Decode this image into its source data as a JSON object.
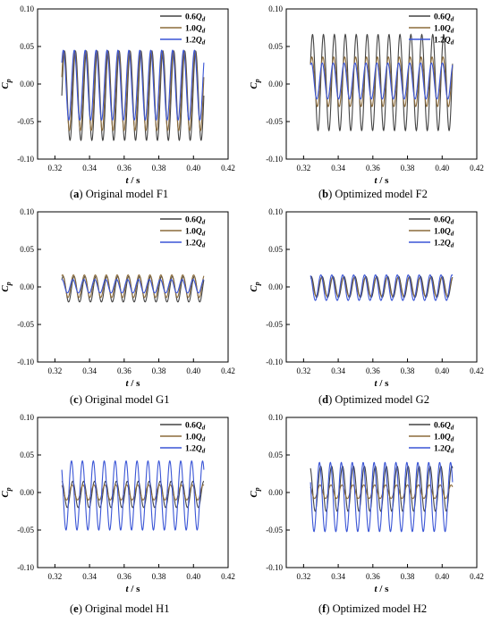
{
  "legend_labels": [
    "0.6Q",
    "1.0Q",
    "1.2Q"
  ],
  "legend_subscript": "d",
  "colors": {
    "s06": "#444444",
    "s10": "#8B6B3A",
    "s12": "#3A55D6"
  },
  "chart_data": [
    {
      "type": "line",
      "caption_letter": "a",
      "caption_text": " Original model F1",
      "xlabel": "t / s",
      "ylabel": "C_p",
      "xlim": [
        0.31,
        0.42
      ],
      "ylim": [
        -0.1,
        0.1
      ],
      "xticks": [
        "0.32",
        "0.34",
        "0.36",
        "0.38",
        "0.40",
        "0.42"
      ],
      "yticks": [
        "-0.10",
        "-0.05",
        "0.00",
        "0.05",
        "0.10"
      ],
      "x_range": [
        0.324,
        0.406
      ],
      "cycles": 13,
      "legend_position": "top-right",
      "series": [
        {
          "label_index": 0,
          "min": -0.075,
          "max": 0.044
        },
        {
          "label_index": 1,
          "min": -0.062,
          "max": 0.044
        },
        {
          "label_index": 2,
          "min": -0.048,
          "max": 0.045
        }
      ]
    },
    {
      "type": "line",
      "caption_letter": "b",
      "caption_text": " Optimized model F2",
      "xlabel": "t / s",
      "ylabel": "C_p",
      "xlim": [
        0.31,
        0.42
      ],
      "ylim": [
        -0.1,
        0.1
      ],
      "xticks": [
        "0.32",
        "0.34",
        "0.36",
        "0.38",
        "0.40",
        "0.42"
      ],
      "yticks": [
        "-0.10",
        "-0.05",
        "0.00",
        "0.05",
        "0.10"
      ],
      "x_range": [
        0.324,
        0.406
      ],
      "cycles": 13,
      "legend_position": "top-right",
      "series": [
        {
          "label_index": 0,
          "min": -0.062,
          "max": 0.066
        },
        {
          "label_index": 1,
          "min": -0.03,
          "max": 0.036
        },
        {
          "label_index": 2,
          "min": -0.02,
          "max": 0.028
        }
      ]
    },
    {
      "type": "line",
      "caption_letter": "c",
      "caption_text": " Original model G1",
      "xlabel": "t / s",
      "ylabel": "C_p",
      "xlim": [
        0.31,
        0.42
      ],
      "ylim": [
        -0.1,
        0.1
      ],
      "xticks": [
        "0.32",
        "0.34",
        "0.36",
        "0.38",
        "0.40",
        "0.42"
      ],
      "yticks": [
        "-0.10",
        "-0.05",
        "0.00",
        "0.05",
        "0.10"
      ],
      "x_range": [
        0.324,
        0.406
      ],
      "cycles": 13,
      "legend_position": "top-right",
      "series": [
        {
          "label_index": 0,
          "min": -0.02,
          "max": 0.014
        },
        {
          "label_index": 1,
          "min": -0.014,
          "max": 0.016
        },
        {
          "label_index": 2,
          "min": -0.008,
          "max": 0.01
        }
      ]
    },
    {
      "type": "line",
      "caption_letter": "d",
      "caption_text": " Optimized model G2",
      "xlabel": "t / s",
      "ylabel": "C_p",
      "xlim": [
        0.31,
        0.42
      ],
      "ylim": [
        -0.1,
        0.1
      ],
      "xticks": [
        "0.32",
        "0.34",
        "0.36",
        "0.38",
        "0.40",
        "0.42"
      ],
      "yticks": [
        "-0.10",
        "-0.05",
        "0.00",
        "0.05",
        "0.10"
      ],
      "x_range": [
        0.324,
        0.406
      ],
      "cycles": 13,
      "legend_position": "top-right",
      "series": [
        {
          "label_index": 0,
          "min": -0.014,
          "max": 0.014
        },
        {
          "label_index": 1,
          "min": -0.012,
          "max": 0.012
        },
        {
          "label_index": 2,
          "min": -0.018,
          "max": 0.016
        }
      ]
    },
    {
      "type": "line",
      "caption_letter": "e",
      "caption_text": " Original model H1",
      "xlabel": "t / s",
      "ylabel": "C_p",
      "xlim": [
        0.31,
        0.42
      ],
      "ylim": [
        -0.1,
        0.1
      ],
      "xticks": [
        "0.32",
        "0.34",
        "0.36",
        "0.38",
        "0.40",
        "0.42"
      ],
      "yticks": [
        "-0.10",
        "-0.05",
        "0.00",
        "0.05",
        "0.10"
      ],
      "x_range": [
        0.324,
        0.406
      ],
      "cycles": 13,
      "legend_position": "top-right",
      "series": [
        {
          "label_index": 0,
          "min": -0.02,
          "max": 0.015
        },
        {
          "label_index": 1,
          "min": -0.01,
          "max": 0.01
        },
        {
          "label_index": 2,
          "min": -0.05,
          "max": 0.042
        }
      ]
    },
    {
      "type": "line",
      "caption_letter": "f",
      "caption_text": " Optimized model H2",
      "xlabel": "t / s",
      "ylabel": "C_p",
      "xlim": [
        0.31,
        0.42
      ],
      "ylim": [
        -0.1,
        0.1
      ],
      "xticks": [
        "0.32",
        "0.34",
        "0.36",
        "0.38",
        "0.40",
        "0.42"
      ],
      "yticks": [
        "-0.10",
        "-0.05",
        "0.00",
        "0.05",
        "0.10"
      ],
      "x_range": [
        0.324,
        0.406
      ],
      "cycles": 13,
      "legend_position": "top-right",
      "series": [
        {
          "label_index": 0,
          "min": -0.025,
          "max": 0.035
        },
        {
          "label_index": 1,
          "min": -0.008,
          "max": 0.01
        },
        {
          "label_index": 2,
          "min": -0.052,
          "max": 0.04
        }
      ]
    }
  ]
}
